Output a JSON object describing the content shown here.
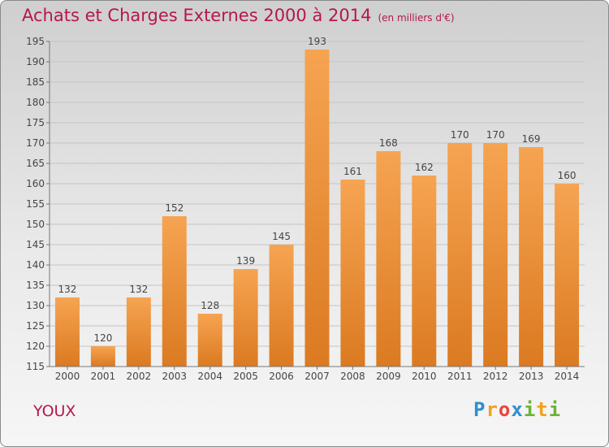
{
  "title": "Achats et Charges Externes 2000 à 2014",
  "subtitle": "(en milliers d'€)",
  "commune": "YOUX",
  "logo": [
    "P",
    "r",
    "o",
    "x",
    "i",
    "t",
    "i"
  ],
  "colors": {
    "bar_top": "#f6a452",
    "bar_bottom": "#db7a21",
    "title": "#b5174b",
    "grid": "#c4c4c4",
    "label": "#444444"
  },
  "chart_data": {
    "type": "bar",
    "categories": [
      "2000",
      "2001",
      "2002",
      "2003",
      "2004",
      "2005",
      "2006",
      "2007",
      "2008",
      "2009",
      "2010",
      "2011",
      "2012",
      "2013",
      "2014"
    ],
    "values": [
      132,
      120,
      132,
      152,
      128,
      139,
      145,
      193,
      161,
      168,
      162,
      170,
      170,
      169,
      160
    ],
    "ylim": [
      115,
      195
    ],
    "yticks": [
      115,
      120,
      125,
      130,
      135,
      140,
      145,
      150,
      155,
      160,
      165,
      170,
      175,
      180,
      185,
      190,
      195
    ],
    "grid": true
  }
}
